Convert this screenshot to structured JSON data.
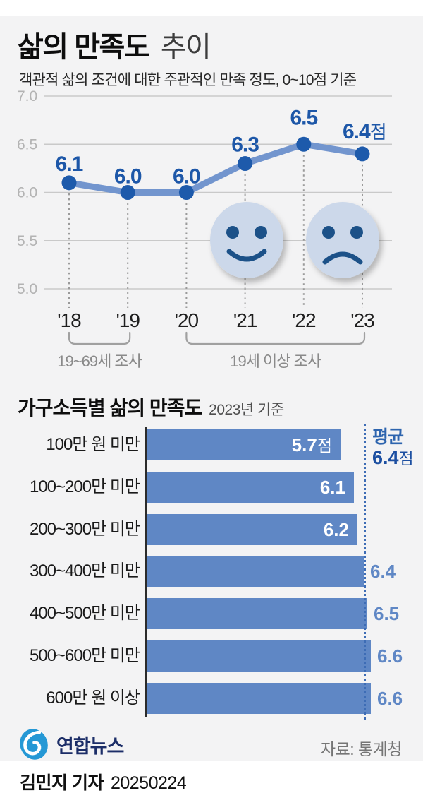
{
  "header": {
    "title_bold": "삶의 만족도",
    "title_light": "추이",
    "subtitle": "객관적 삶의 조건에 대한 주관적인 만족 정도, 0~10점 기준"
  },
  "chart_data": [
    {
      "type": "line",
      "title": "삶의 만족도 추이",
      "x": [
        "'18",
        "'19",
        "'20",
        "'21",
        "'22",
        "'23"
      ],
      "values": [
        6.1,
        6.0,
        6.0,
        6.3,
        6.5,
        6.4
      ],
      "point_labels": [
        "6.1",
        "6.0",
        "6.0",
        "6.3",
        "6.5",
        "6.4점"
      ],
      "ylim": [
        5.0,
        7.0
      ],
      "yticks": [
        7.0,
        6.5,
        6.0,
        5.5,
        5.0
      ],
      "ytick_labels": [
        "7.0",
        "6.5",
        "6.0",
        "5.5",
        "5.0"
      ],
      "grid": true,
      "legend": "none",
      "annotations": [
        {
          "label": "19~69세 조사",
          "span": [
            "'18",
            "'19"
          ]
        },
        {
          "label": "19세 이상 조사",
          "span": [
            "'20",
            "'23"
          ]
        }
      ],
      "icons": [
        "happy-face",
        "sad-face"
      ],
      "colors": {
        "line": "#7295ce",
        "point": "#1d5aab",
        "point_label": "#1d57a8",
        "face_fill": "#ccd8ea",
        "face_feature": "#1a5188",
        "grid": "#c9c9c9",
        "ytick": "#b3b3b3",
        "xtick": "#1f1f1f",
        "bracket": "#a0a0a0",
        "bracket_label": "#8a8a8a"
      }
    },
    {
      "type": "bar",
      "orientation": "horizontal",
      "title": "가구소득별 삶의 만족도",
      "subtitle": "2023년 기준",
      "categories": [
        "100만 원 미만",
        "100~200만 미만",
        "200~300만 미만",
        "300~400만 미만",
        "400~500만 미만",
        "500~600만 미만",
        "600만 원 이상"
      ],
      "values": [
        5.7,
        6.1,
        6.2,
        6.4,
        6.5,
        6.6,
        6.6
      ],
      "value_labels": [
        "5.7점",
        "6.1",
        "6.2",
        "6.4",
        "6.5",
        "6.6",
        "6.6"
      ],
      "average": {
        "label": "평균",
        "value": 6.4,
        "value_text": "6.4",
        "suffix": "점"
      },
      "colors": {
        "bar": "#5f87c5",
        "value_out": "#5f87c5",
        "value_in": "#ffffff",
        "axis": "#2b2b2b",
        "avg_line": "#3d6cb5"
      }
    }
  ],
  "footer": {
    "logo_text": "연합뉴스",
    "source": "자료: 통계청",
    "byline_name": "김민지 기자",
    "byline_date": "20250224"
  }
}
